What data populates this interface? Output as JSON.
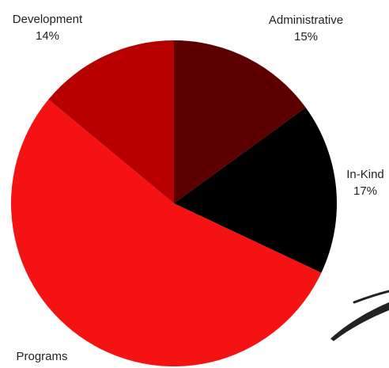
{
  "chart_data": {
    "type": "pie",
    "start_angle_deg": 0,
    "direction": "clockwise",
    "slices": [
      {
        "name": "Administrative",
        "value": 15,
        "percent_label": "15%",
        "color": "#5c0000"
      },
      {
        "name": "In-Kind",
        "value": 17,
        "percent_label": "17%",
        "color": "#000000"
      },
      {
        "name": "Programs",
        "value": 54,
        "percent_label": "",
        "color": "#f51212"
      },
      {
        "name": "Development",
        "value": 14,
        "percent_label": "14%",
        "color": "#b80000"
      }
    ]
  },
  "decoration": {
    "swoosh_color": "#222222"
  }
}
